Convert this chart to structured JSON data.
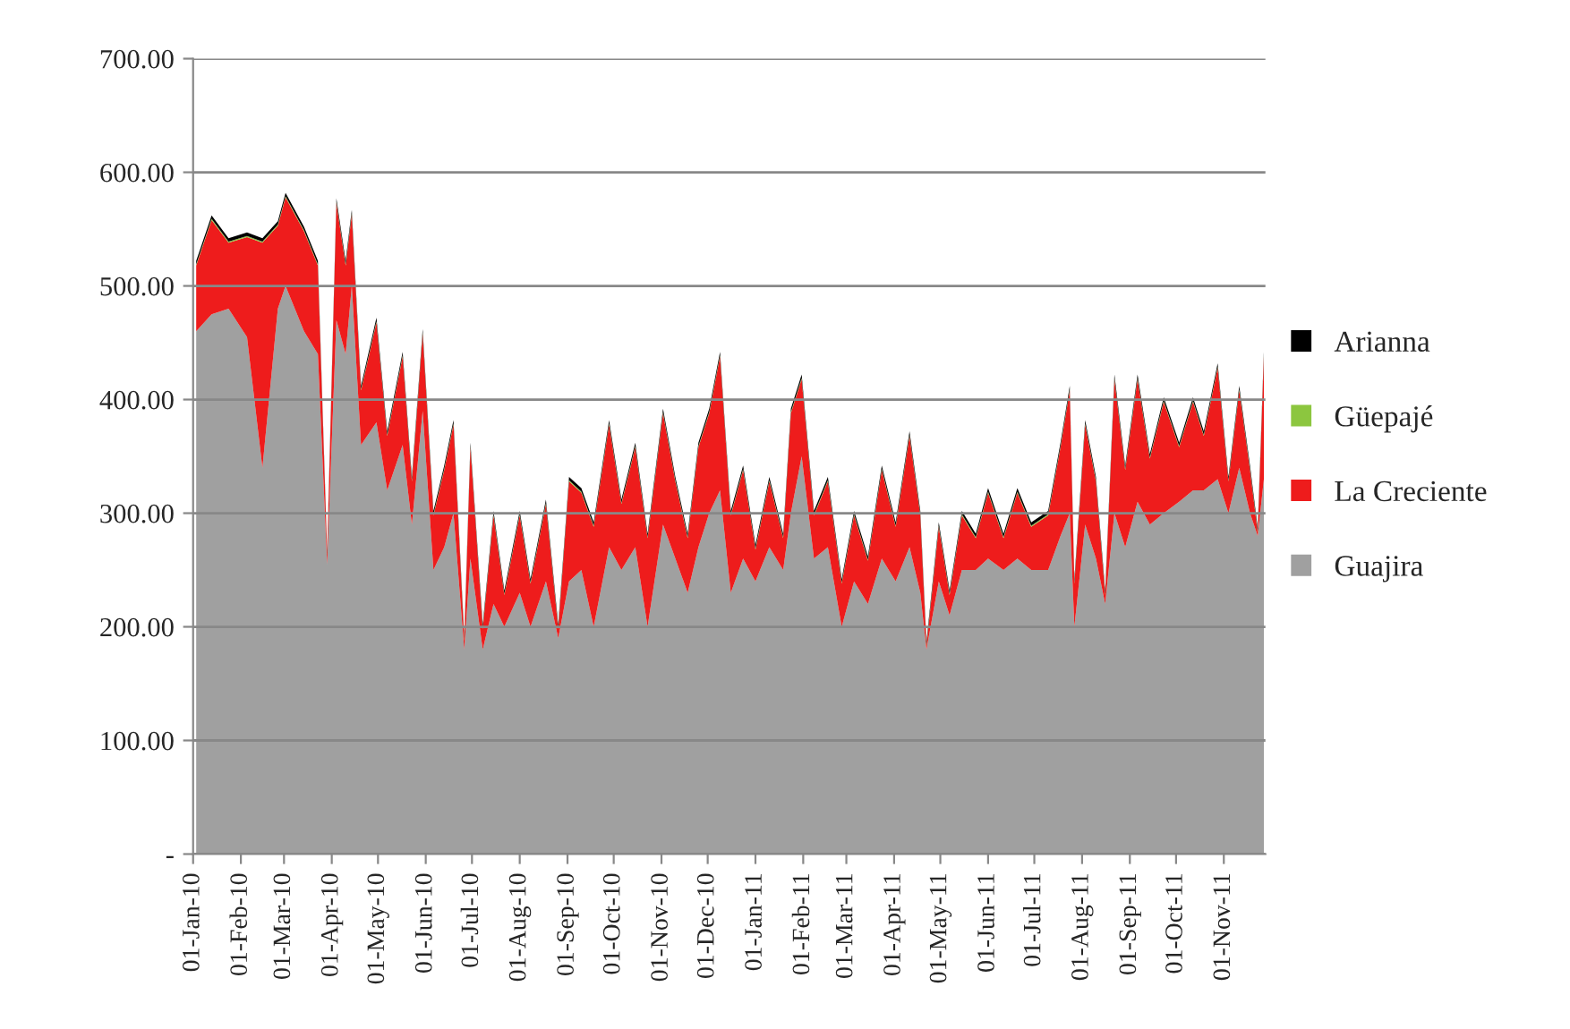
{
  "chart_data": {
    "type": "area",
    "stacked": true,
    "x": [
      "2010-01-03",
      "2010-01-13",
      "2010-01-24",
      "2010-02-05",
      "2010-02-15",
      "2010-02-25",
      "2010-03-02",
      "2010-03-14",
      "2010-03-23",
      "2010-03-29",
      "2010-04-04",
      "2010-04-10",
      "2010-04-14",
      "2010-04-20",
      "2010-04-30",
      "2010-05-07",
      "2010-05-17",
      "2010-05-23",
      "2010-05-30",
      "2010-06-06",
      "2010-06-13",
      "2010-06-19",
      "2010-06-26",
      "2010-06-30",
      "2010-07-08",
      "2010-07-15",
      "2010-07-22",
      "2010-08-01",
      "2010-08-08",
      "2010-08-18",
      "2010-08-26",
      "2010-09-02",
      "2010-09-10",
      "2010-09-18",
      "2010-09-28",
      "2010-10-06",
      "2010-10-15",
      "2010-10-23",
      "2010-11-02",
      "2010-11-10",
      "2010-11-18",
      "2010-11-25",
      "2010-12-02",
      "2010-12-09",
      "2010-12-16",
      "2010-12-24",
      "2011-01-01",
      "2011-01-10",
      "2011-01-19",
      "2011-01-24",
      "2011-01-31",
      "2011-02-08",
      "2011-02-17",
      "2011-02-26",
      "2011-03-06",
      "2011-03-15",
      "2011-03-24",
      "2011-04-02",
      "2011-04-11",
      "2011-04-18",
      "2011-04-22",
      "2011-04-30",
      "2011-05-07",
      "2011-05-15",
      "2011-05-24",
      "2011-06-01",
      "2011-06-11",
      "2011-06-20",
      "2011-06-29",
      "2011-07-10",
      "2011-07-18",
      "2011-07-24",
      "2011-07-27",
      "2011-08-03",
      "2011-08-10",
      "2011-08-16",
      "2011-08-22",
      "2011-08-29",
      "2011-09-06",
      "2011-09-14",
      "2011-09-23",
      "2011-10-03",
      "2011-10-12",
      "2011-10-19",
      "2011-10-28",
      "2011-11-04",
      "2011-11-11",
      "2011-11-18",
      "2011-11-23",
      "2011-11-27"
    ],
    "series": [
      {
        "name": "Guajira",
        "color": "#a0a0a0",
        "values": [
          460,
          475,
          480,
          455,
          340,
          480,
          500,
          460,
          440,
          255,
          470,
          440,
          500,
          360,
          380,
          320,
          360,
          290,
          390,
          250,
          270,
          300,
          180,
          260,
          180,
          220,
          200,
          230,
          200,
          240,
          190,
          240,
          250,
          200,
          270,
          250,
          270,
          200,
          290,
          260,
          230,
          270,
          300,
          320,
          230,
          260,
          240,
          270,
          250,
          300,
          350,
          260,
          270,
          200,
          240,
          220,
          260,
          240,
          270,
          230,
          180,
          240,
          210,
          250,
          250,
          260,
          250,
          260,
          250,
          250,
          280,
          300,
          200,
          290,
          260,
          220,
          300,
          270,
          310,
          290,
          300,
          310,
          320,
          320,
          330,
          300,
          340,
          300,
          280,
          330
        ]
      },
      {
        "name": "La Creciente",
        "color": "#ee1c1c",
        "values": [
          58,
          83,
          58,
          88,
          198,
          73,
          78,
          88,
          78,
          8,
          103,
          78,
          63,
          48,
          88,
          48,
          78,
          38,
          68,
          48,
          68,
          78,
          8,
          98,
          18,
          78,
          28,
          68,
          38,
          68,
          8,
          88,
          68,
          88,
          108,
          58,
          88,
          78,
          98,
          68,
          48,
          88,
          88,
          118,
          68,
          78,
          28,
          58,
          28,
          88,
          68,
          38,
          58,
          38,
          58,
          38,
          78,
          48,
          98,
          68,
          3,
          48,
          18,
          48,
          28,
          58,
          28,
          58,
          38,
          48,
          78,
          108,
          38,
          88,
          68,
          8,
          118,
          68,
          108,
          58,
          98,
          48,
          78,
          48,
          98,
          28,
          68,
          38,
          3,
          108
        ]
      },
      {
        "name": "Güepajé",
        "color": "#8cc63f",
        "values": [
          1,
          1,
          1,
          1,
          1,
          1,
          1,
          1,
          1,
          1,
          1,
          1,
          1,
          1,
          1,
          1,
          1,
          1,
          1,
          1,
          1,
          1,
          1,
          1,
          1,
          1,
          1,
          1,
          1,
          1,
          1,
          1,
          1,
          1,
          1,
          1,
          1,
          1,
          1,
          1,
          1,
          1,
          1,
          1,
          1,
          1,
          1,
          1,
          1,
          1,
          1,
          1,
          1,
          1,
          1,
          1,
          1,
          1,
          1,
          1,
          1,
          1,
          1,
          1,
          1,
          1,
          1,
          1,
          1,
          1,
          1,
          1,
          1,
          1,
          1,
          1,
          1,
          1,
          1,
          1,
          1,
          1,
          1,
          1,
          1,
          1,
          1,
          1,
          1,
          1
        ]
      },
      {
        "name": "Arianna",
        "color": "#000000",
        "values": [
          3,
          3,
          3,
          3,
          3,
          3,
          3,
          3,
          3,
          3,
          3,
          3,
          3,
          3,
          3,
          3,
          3,
          3,
          3,
          3,
          3,
          3,
          3,
          3,
          3,
          3,
          3,
          3,
          3,
          3,
          3,
          3,
          3,
          3,
          3,
          3,
          3,
          3,
          3,
          3,
          3,
          3,
          3,
          3,
          3,
          3,
          3,
          3,
          3,
          3,
          3,
          3,
          3,
          3,
          3,
          3,
          3,
          3,
          3,
          3,
          3,
          3,
          3,
          3,
          3,
          3,
          3,
          3,
          3,
          3,
          3,
          3,
          3,
          3,
          3,
          3,
          3,
          3,
          3,
          3,
          3,
          3,
          3,
          3,
          3,
          3,
          3,
          3,
          3,
          3
        ]
      }
    ],
    "xlim": [
      "2010-01-01",
      "2011-11-28"
    ],
    "xticks": [
      {
        "value": "2010-01-01",
        "label": "01-Jan-10"
      },
      {
        "value": "2010-02-01",
        "label": "01-Feb-10"
      },
      {
        "value": "2010-03-01",
        "label": "01-Mar-10"
      },
      {
        "value": "2010-04-01",
        "label": "01-Apr-10"
      },
      {
        "value": "2010-05-01",
        "label": "01-May-10"
      },
      {
        "value": "2010-06-01",
        "label": "01-Jun-10"
      },
      {
        "value": "2010-07-01",
        "label": "01-Jul-10"
      },
      {
        "value": "2010-08-01",
        "label": "01-Aug-10"
      },
      {
        "value": "2010-09-01",
        "label": "01-Sep-10"
      },
      {
        "value": "2010-10-01",
        "label": "01-Oct-10"
      },
      {
        "value": "2010-11-01",
        "label": "01-Nov-10"
      },
      {
        "value": "2010-12-01",
        "label": "01-Dec-10"
      },
      {
        "value": "2011-01-01",
        "label": "01-Jan-11"
      },
      {
        "value": "2011-02-01",
        "label": "01-Feb-11"
      },
      {
        "value": "2011-03-01",
        "label": "01-Mar-11"
      },
      {
        "value": "2011-04-01",
        "label": "01-Apr-11"
      },
      {
        "value": "2011-05-01",
        "label": "01-May-11"
      },
      {
        "value": "2011-06-01",
        "label": "01-Jun-11"
      },
      {
        "value": "2011-07-01",
        "label": "01-Jul-11"
      },
      {
        "value": "2011-08-01",
        "label": "01-Aug-11"
      },
      {
        "value": "2011-09-01",
        "label": "01-Sep-11"
      },
      {
        "value": "2011-10-01",
        "label": "01-Oct-11"
      },
      {
        "value": "2011-11-01",
        "label": "01-Nov-11"
      }
    ],
    "ylim": [
      0,
      700
    ],
    "yticks": [
      {
        "value": 0,
        "label": "-"
      },
      {
        "value": 100,
        "label": "100.00"
      },
      {
        "value": 200,
        "label": "200.00"
      },
      {
        "value": 300,
        "label": "300.00"
      },
      {
        "value": 400,
        "label": "400.00"
      },
      {
        "value": 500,
        "label": "500.00"
      },
      {
        "value": 600,
        "label": "600.00"
      },
      {
        "value": 700,
        "label": "700.00"
      }
    ],
    "grid": "y",
    "legend": "right"
  }
}
